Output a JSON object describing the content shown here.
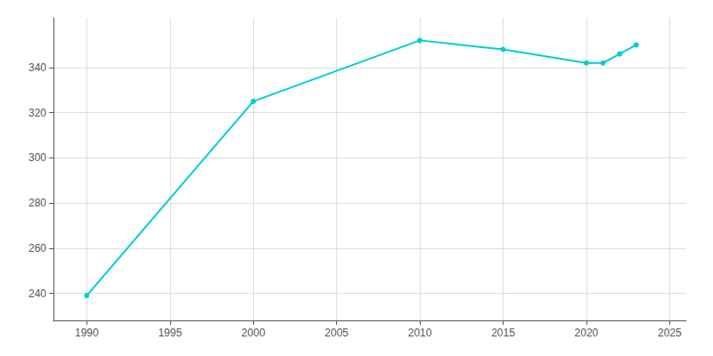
{
  "chart_data": {
    "type": "line",
    "x": [
      1990,
      2000,
      2010,
      2015,
      2020,
      2021,
      2022,
      2023
    ],
    "values": [
      239,
      325,
      352,
      348,
      342,
      342,
      346,
      350
    ],
    "color": "#00CED1",
    "marker": "circle",
    "xlim": [
      1988,
      2026
    ],
    "ylim": [
      228,
      362
    ],
    "xticks": [
      1990,
      1995,
      2000,
      2005,
      2010,
      2015,
      2020,
      2025
    ],
    "yticks": [
      240,
      260,
      280,
      300,
      320,
      340
    ],
    "grid": true
  }
}
